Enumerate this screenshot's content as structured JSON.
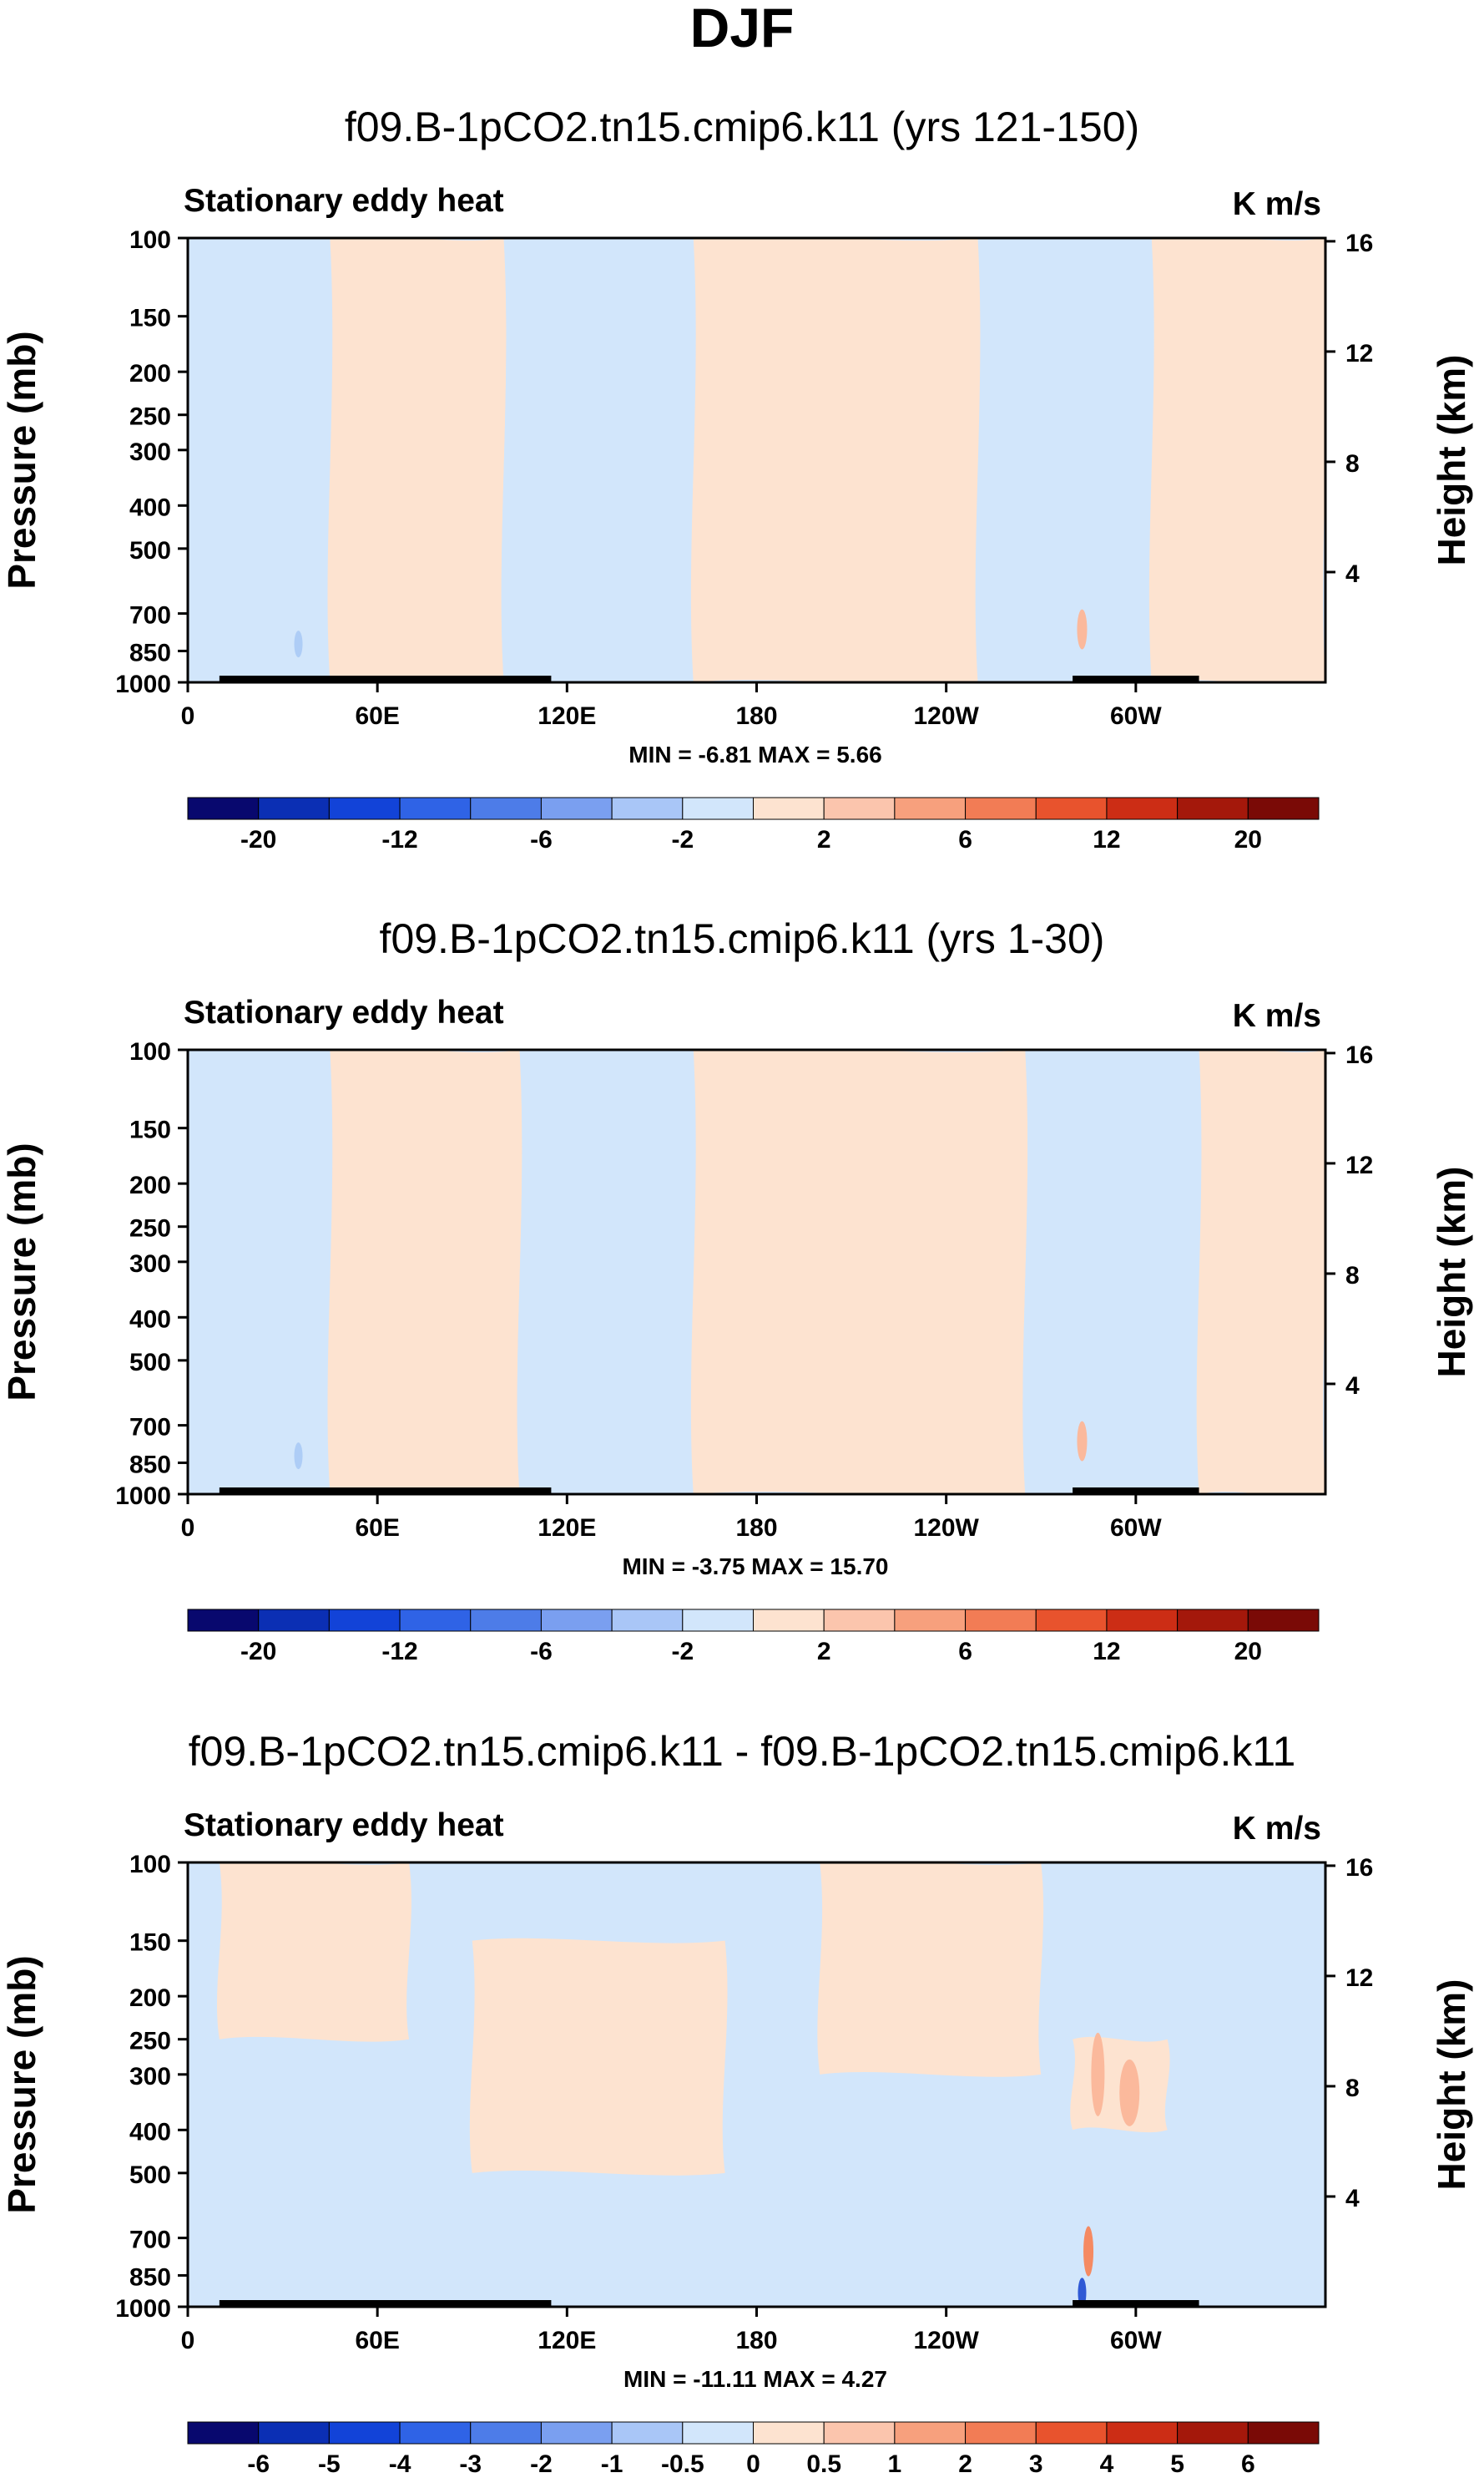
{
  "figure": {
    "title": "DJF"
  },
  "colors": {
    "light_blue": "#d2e6fb",
    "light_orange": "#fde3d0",
    "orange_2": "#fbb99c",
    "orange_3": "#f58a62",
    "blue_2": "#aecdf6",
    "blue_3": "#6f9ded",
    "blue_5": "#2f59d5",
    "topo": "#000000"
  },
  "chart_data": [
    {
      "type": "heatmap",
      "title": "f09.B-1pCO2.tn15.cmip6.k11 (yrs 121-150)",
      "subtitle_left": "Stationary eddy heat",
      "units": "K m/s",
      "xlabel": "",
      "ylabel": "Pressure (mb)",
      "ylabel_right": "Height (km)",
      "x_ticks": [
        "0",
        "60E",
        "120E",
        "180",
        "120W",
        "60W"
      ],
      "x_tick_positions": [
        0,
        60,
        120,
        180,
        240,
        300
      ],
      "xlim": [
        0,
        360
      ],
      "y_ticks": [
        100,
        150,
        200,
        250,
        300,
        400,
        500,
        700,
        850,
        1000
      ],
      "ylim": [
        1000,
        100
      ],
      "y2_ticks": [
        4,
        8,
        12,
        16
      ],
      "stats": "MIN =  -6.81   MAX =   5.66",
      "colorbar_labels": [
        "-20",
        "-12",
        "-6",
        "-2",
        "2",
        "6",
        "12",
        "20"
      ],
      "colorbar_label_bins": [
        1,
        3,
        5,
        7,
        9,
        11,
        13,
        15
      ],
      "colorbar_colors": [
        "#08086e",
        "#0b2fb4",
        "#1243d8",
        "#2f63e6",
        "#4d7ce8",
        "#7a9ff0",
        "#a9c6f7",
        "#d2e6fb",
        "#fde3d0",
        "#fbc5ad",
        "#f7a07d",
        "#f27c55",
        "#e8532d",
        "#cc2d15",
        "#a4180b",
        "#7a0a06"
      ],
      "fields": [
        {
          "type": "blue",
          "lon": [
            0,
            45
          ],
          "p": [
            100,
            1000
          ]
        },
        {
          "type": "orange",
          "lon": [
            45,
            100
          ],
          "p": [
            100,
            1000
          ]
        },
        {
          "type": "blue",
          "lon": [
            100,
            160
          ],
          "p": [
            100,
            1000
          ]
        },
        {
          "type": "orange",
          "lon": [
            160,
            250
          ],
          "p": [
            100,
            1000
          ]
        },
        {
          "type": "blue",
          "lon": [
            255,
            305
          ],
          "p": [
            100,
            1000
          ]
        },
        {
          "type": "orange",
          "lon": [
            305,
            360
          ],
          "p": [
            100,
            1000
          ]
        }
      ],
      "topography": [
        [
          10,
          1000,
          35
        ],
        [
          25,
          1000,
          90
        ],
        [
          280,
          1000,
          25
        ],
        [
          300,
          1000,
          20
        ]
      ]
    },
    {
      "type": "heatmap",
      "title": "f09.B-1pCO2.tn15.cmip6.k11 (yrs 1-30)",
      "subtitle_left": "Stationary eddy heat",
      "units": "K m/s",
      "xlabel": "",
      "ylabel": "Pressure (mb)",
      "ylabel_right": "Height (km)",
      "x_ticks": [
        "0",
        "60E",
        "120E",
        "180",
        "120W",
        "60W"
      ],
      "x_tick_positions": [
        0,
        60,
        120,
        180,
        240,
        300
      ],
      "xlim": [
        0,
        360
      ],
      "y_ticks": [
        100,
        150,
        200,
        250,
        300,
        400,
        500,
        700,
        850,
        1000
      ],
      "ylim": [
        1000,
        100
      ],
      "y2_ticks": [
        4,
        8,
        12,
        16
      ],
      "stats": "MIN =  -3.75   MAX =  15.70",
      "colorbar_labels": [
        "-20",
        "-12",
        "-6",
        "-2",
        "2",
        "6",
        "12",
        "20"
      ],
      "colorbar_label_bins": [
        1,
        3,
        5,
        7,
        9,
        11,
        13,
        15
      ],
      "colorbar_colors": [
        "#08086e",
        "#0b2fb4",
        "#1243d8",
        "#2f63e6",
        "#4d7ce8",
        "#7a9ff0",
        "#a9c6f7",
        "#d2e6fb",
        "#fde3d0",
        "#fbc5ad",
        "#f7a07d",
        "#f27c55",
        "#e8532d",
        "#cc2d15",
        "#a4180b",
        "#7a0a06"
      ],
      "fields": [
        {
          "type": "blue",
          "lon": [
            0,
            45
          ],
          "p": [
            100,
            1000
          ]
        },
        {
          "type": "orange",
          "lon": [
            45,
            105
          ],
          "p": [
            100,
            1000
          ]
        },
        {
          "type": "blue",
          "lon": [
            105,
            160
          ],
          "p": [
            100,
            1000
          ]
        },
        {
          "type": "orange",
          "lon": [
            160,
            265
          ],
          "p": [
            100,
            1000
          ]
        },
        {
          "type": "blue",
          "lon": [
            265,
            320
          ],
          "p": [
            100,
            1000
          ]
        },
        {
          "type": "orange",
          "lon": [
            320,
            360
          ],
          "p": [
            100,
            1000
          ]
        }
      ],
      "topography": [
        [
          10,
          1000,
          35
        ],
        [
          25,
          1000,
          90
        ],
        [
          280,
          1000,
          25
        ],
        [
          300,
          1000,
          20
        ]
      ]
    },
    {
      "type": "heatmap",
      "title": "f09.B-1pCO2.tn15.cmip6.k11 - f09.B-1pCO2.tn15.cmip6.k11",
      "subtitle_left": "Stationary eddy heat",
      "units": "K m/s",
      "xlabel": "",
      "ylabel": "Pressure (mb)",
      "ylabel_right": "Height (km)",
      "x_ticks": [
        "0",
        "60E",
        "120E",
        "180",
        "120W",
        "60W"
      ],
      "x_tick_positions": [
        0,
        60,
        120,
        180,
        240,
        300
      ],
      "xlim": [
        0,
        360
      ],
      "y_ticks": [
        100,
        150,
        200,
        250,
        300,
        400,
        500,
        700,
        850,
        1000
      ],
      "ylim": [
        1000,
        100
      ],
      "y2_ticks": [
        4,
        8,
        12,
        16
      ],
      "stats": "MIN = -11.11   MAX =   4.27",
      "colorbar_labels": [
        "-6",
        "-5",
        "-4",
        "-3",
        "-2",
        "-1",
        "-0.5",
        "0",
        "0.5",
        "1",
        "2",
        "3",
        "4",
        "5",
        "6"
      ],
      "colorbar_label_bins": [
        1,
        2,
        3,
        4,
        5,
        6,
        7,
        8,
        9,
        10,
        11,
        12,
        13,
        14,
        15
      ],
      "colorbar_colors": [
        "#08086e",
        "#0b2fb4",
        "#1243d8",
        "#2f63e6",
        "#4d7ce8",
        "#7a9ff0",
        "#a9c6f7",
        "#d2e6fb",
        "#fde3d0",
        "#fbc5ad",
        "#f7a07d",
        "#f27c55",
        "#e8532d",
        "#cc2d15",
        "#a4180b",
        "#7a0a06"
      ],
      "fields": [
        {
          "type": "blue",
          "lon": [
            0,
            360
          ],
          "p": [
            100,
            1000
          ]
        },
        {
          "type": "orange",
          "lon": [
            10,
            70
          ],
          "p": [
            100,
            250
          ]
        },
        {
          "type": "orange",
          "lon": [
            90,
            170
          ],
          "p": [
            150,
            500
          ]
        },
        {
          "type": "orange",
          "lon": [
            200,
            270
          ],
          "p": [
            100,
            300
          ]
        },
        {
          "type": "orange",
          "lon": [
            280,
            310
          ],
          "p": [
            250,
            400
          ]
        }
      ],
      "topography": [
        [
          10,
          1000,
          35
        ],
        [
          25,
          1000,
          90
        ],
        [
          280,
          1000,
          25
        ],
        [
          300,
          1000,
          20
        ]
      ]
    }
  ]
}
